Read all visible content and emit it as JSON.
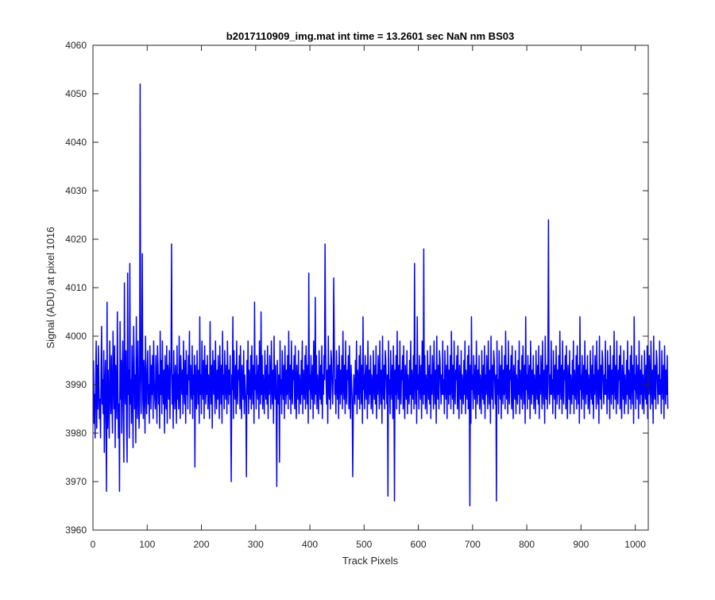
{
  "chart_data": {
    "type": "line",
    "title": "b2017110909_img.mat int time = 13.2601 sec  NaN nm BS03",
    "xlabel": "Track Pixels",
    "ylabel": "Signal (ADU) at pixel 1016",
    "xlim": [
      0,
      1024
    ],
    "ylim": [
      3960,
      4060
    ],
    "xticks": [
      0,
      100,
      200,
      300,
      400,
      500,
      600,
      700,
      800,
      900,
      1000
    ],
    "yticks": [
      3960,
      3970,
      3980,
      3990,
      4000,
      4010,
      4020,
      4030,
      4040,
      4050,
      4060
    ],
    "grid": false,
    "legend": "none",
    "series": [
      {
        "color": "#0000ff",
        "x_start": 1,
        "x_step": 1,
        "values": [
          3995,
          3982,
          3988,
          3979,
          3992,
          3999,
          3981,
          3994,
          3985,
          3998,
          3990,
          3983,
          3987,
          3979,
          3993,
          4002,
          3986,
          3991,
          3984,
          3997,
          3976,
          3989,
          3995,
          3982,
          3968,
          4007,
          3981,
          3993,
          3986,
          3979,
          3999,
          3990,
          3984,
          3996,
          3988,
          3980,
          4001,
          3992,
          3985,
          3998,
          3977,
          3994,
          3989,
          3983,
          4005,
          3991,
          3979,
          3986,
          3968,
          4003,
          3987,
          3995,
          3980,
          3992,
          3999,
          3984,
          3974,
          4011,
          3990,
          3986,
          3997,
          3981,
          3974,
          4013,
          3988,
          3993,
          3979,
          4015,
          3986,
          3991,
          3982,
          3998,
          3989,
          3977,
          4002,
          3995,
          3985,
          3992,
          3978,
          4004,
          3988,
          3983,
          3999,
          3990,
          3981,
          3986,
          4052,
          3994,
          3984,
          3997,
          4017,
          3987,
          3983,
          3995,
          3991,
          3980,
          4000,
          3989,
          3984,
          3993,
          3997,
          3986,
          3990,
          3982,
          3998,
          3992,
          3985,
          3994,
          3988,
          3996,
          3983,
          3999,
          3991,
          3987,
          3985,
          3996,
          3990,
          3982,
          3998,
          3994,
          3986,
          3992,
          3981,
          4001,
          3988,
          3995,
          3984,
          3999,
          3990,
          3986,
          3993,
          3980,
          3996,
          3989,
          3985,
          3998,
          3982,
          3994,
          3991,
          3987,
          3997,
          3983,
          3990,
          3995,
          4019,
          3986,
          3992,
          3981,
          3997,
          3989,
          3985,
          3994,
          3990,
          3982,
          3998,
          3987,
          3992,
          3985,
          4000,
          3989,
          3983,
          3996,
          3991,
          3988,
          3993,
          3984,
          3999,
          3990,
          3986,
          3995,
          3982,
          3997,
          3988,
          3992,
          3985,
          3996,
          3991,
          4001,
          3984,
          3994,
          3990,
          3987,
          3998,
          3983,
          3992,
          3988,
          3996,
          3973,
          3994,
          3989,
          3985,
          3997,
          3991,
          3986,
          3993,
          3982,
          4004,
          3988,
          3992,
          3984,
          3999,
          3990,
          3987,
          3995,
          3983,
          3998,
          3991,
          3986,
          3994,
          3988,
          3996,
          3985,
          3992,
          3989,
          3983,
          4003,
          3990,
          3986,
          3994,
          3981,
          3997,
          3991,
          3988,
          3995,
          3984,
          3999,
          3989,
          3985,
          3993,
          3987,
          3996,
          3990,
          3983,
          3998,
          3991,
          3986,
          3994,
          3982,
          4001,
          3988,
          3992,
          3985,
          3997,
          3990,
          3987,
          3994,
          3984,
          3999,
          3991,
          3986,
          3993,
          3988,
          3996,
          3985,
          3970,
          3992,
          3989,
          4004,
          3983,
          3997,
          3990,
          3987,
          3994,
          3984,
          3999,
          3989,
          3986,
          3993,
          3991,
          3996,
          3985,
          3998,
          3988,
          3983,
          3994,
          3990,
          3987,
          3997,
          3984,
          3992,
          3989,
          3986,
          3971,
          3995,
          3988,
          3999,
          3984,
          3993,
          3990,
          3987,
          3996,
          3985,
          3998,
          3991,
          3986,
          3994,
          3982,
          4007,
          3989,
          3992,
          3985,
          3996,
          3990,
          3987,
          3994,
          3983,
          3999,
          3991,
          3986,
          4005,
          3988,
          3996,
          3985,
          3992,
          3989,
          3984,
          3997,
          3990,
          3987,
          3994,
          3986,
          3998,
          3983,
          3992,
          3988,
          3996,
          3991,
          3985,
          3999,
          3990,
          3986,
          3993,
          3982,
          4000,
          3989,
          3987,
          3994,
          3985,
          3969,
          3995,
          3990,
          3986,
          3992,
          3974,
          3999,
          3988,
          3991,
          3984,
          3997,
          3990,
          3987,
          3994,
          3983,
          3998,
          3991,
          3986,
          3993,
          3988,
          3996,
          3985,
          4001,
          3990,
          3987,
          3994,
          3984,
          3999,
          3989,
          3986,
          3993,
          3991,
          3996,
          3985,
          3998,
          3988,
          3983,
          3994,
          3990,
          3987,
          3997,
          3984,
          3992,
          3989,
          3986,
          3995,
          3988,
          3999,
          3984,
          3993,
          3990,
          3987,
          3996,
          3985,
          3998,
          3991,
          3986,
          3994,
          3982,
          4013,
          3989,
          3992,
          3985,
          3996,
          3990,
          3987,
          3994,
          3983,
          3999,
          3991,
          3986,
          4008,
          3988,
          3996,
          3985,
          3992,
          3989,
          3984,
          3997,
          3990,
          3987,
          3994,
          3986,
          3998,
          3983,
          3992,
          3988,
          3996,
          3991,
          4019,
          3999,
          3990,
          3986,
          3993,
          3982,
          4000,
          3989,
          3987,
          3994,
          3985,
          3997,
          3995,
          3990,
          3986,
          3992,
          4012,
          3999,
          3988,
          3991,
          3984,
          3997,
          3990,
          3987,
          3994,
          3983,
          3998,
          3991,
          3986,
          3993,
          3988,
          3996,
          3985,
          4001,
          3990,
          3987,
          3994,
          3984,
          3999,
          3989,
          3986,
          3993,
          3991,
          3996,
          3985,
          3998,
          3988,
          3983,
          3994,
          3990,
          3987,
          3971,
          3984,
          3992,
          3989,
          3986,
          3995,
          3988,
          3999,
          3984,
          3993,
          3990,
          3987,
          3996,
          3985,
          3998,
          3991,
          3986,
          3994,
          3982,
          4004,
          3989,
          3992,
          3985,
          3996,
          3990,
          3987,
          3994,
          3983,
          3999,
          3991,
          3986,
          3993,
          3988,
          3996,
          3985,
          3992,
          3989,
          3984,
          3997,
          3990,
          3987,
          3994,
          3986,
          3998,
          3983,
          3992,
          3988,
          3996,
          3991,
          3985,
          3999,
          3990,
          3986,
          3993,
          3982,
          4000,
          3989,
          3987,
          3994,
          3985,
          3997,
          3995,
          3990,
          3986,
          3992,
          3967,
          3999,
          3988,
          3991,
          3984,
          3997,
          3990,
          3987,
          3994,
          3983,
          3998,
          3991,
          3966,
          3993,
          3988,
          3996,
          3985,
          4001,
          3990,
          3987,
          3994,
          3984,
          3999,
          3989,
          3986,
          3993,
          3991,
          3996,
          3985,
          3998,
          3988,
          3983,
          3994,
          3990,
          3987,
          3997,
          3984,
          3992,
          3989,
          3986,
          3995,
          3988,
          3999,
          3984,
          3993,
          3990,
          3987,
          3996,
          3985,
          4015,
          3991,
          3986,
          3994,
          3982,
          4004,
          3989,
          3992,
          3985,
          3996,
          3990,
          3987,
          3994,
          3983,
          3999,
          3991,
          3986,
          4018,
          3988,
          3996,
          3985,
          3992,
          3989,
          3984,
          3997,
          3990,
          3987,
          3994,
          3986,
          3998,
          3983,
          3992,
          3988,
          3996,
          3991,
          3985,
          3999,
          3990,
          3986,
          3993,
          3982,
          4000,
          3989,
          3987,
          3994,
          3985,
          3997,
          3995,
          3990,
          3986,
          3992,
          3988,
          3999,
          3988,
          3991,
          3984,
          3997,
          3990,
          3987,
          3994,
          3983,
          3998,
          3991,
          3986,
          3993,
          3988,
          3996,
          3985,
          4001,
          3990,
          3987,
          3994,
          3984,
          3999,
          3989,
          3986,
          3993,
          3991,
          3996,
          3985,
          3998,
          3988,
          3983,
          3994,
          3990,
          3987,
          3997,
          3984,
          3992,
          3989,
          3986,
          3995,
          3988,
          3999,
          3984,
          3993,
          3990,
          3987,
          3996,
          3985,
          3998,
          3991,
          3965,
          3994,
          3982,
          4004,
          3989,
          3992,
          3985,
          3996,
          3990,
          3987,
          3994,
          3983,
          3999,
          3991,
          3986,
          3993,
          3988,
          3996,
          3985,
          3992,
          3989,
          3984,
          3997,
          3990,
          3987,
          3994,
          3986,
          3998,
          3983,
          3992,
          3988,
          3996,
          3991,
          3985,
          3999,
          3990,
          3986,
          3993,
          3982,
          4000,
          3989,
          3987,
          3994,
          3985,
          3997,
          3995,
          3990,
          3986,
          3992,
          3966,
          3999,
          3988,
          3991,
          3984,
          3997,
          3990,
          3987,
          3994,
          3983,
          3998,
          3991,
          3986,
          3993,
          3988,
          3996,
          3985,
          4001,
          3990,
          3987,
          3994,
          3984,
          3999,
          3989,
          3986,
          3993,
          3991,
          3996,
          3985,
          3998,
          3988,
          3983,
          3994,
          3990,
          3987,
          3997,
          3984,
          3992,
          3989,
          3986,
          3995,
          3988,
          3999,
          3984,
          3993,
          3990,
          3987,
          3996,
          3985,
          3998,
          3991,
          3986,
          3994,
          3982,
          4004,
          3989,
          3992,
          3985,
          3996,
          3990,
          3987,
          3994,
          3983,
          3999,
          3991,
          3986,
          3993,
          3988,
          3996,
          3985,
          3992,
          3989,
          3984,
          3997,
          3990,
          3987,
          3994,
          3986,
          3998,
          3983,
          3992,
          3988,
          3996,
          3991,
          3985,
          3999,
          3990,
          3986,
          3993,
          3982,
          4000,
          3989,
          3987,
          3994,
          3985,
          3997,
          4024,
          3990,
          3986,
          3992,
          3988,
          3999,
          3988,
          3991,
          3984,
          3997,
          3990,
          3987,
          3994,
          3983,
          3998,
          3991,
          3986,
          3993,
          3988,
          3996,
          3985,
          4001,
          3990,
          3987,
          3994,
          3984,
          3999,
          3989,
          3986,
          3993,
          3991,
          3996,
          3985,
          3998,
          3988,
          3983,
          3994,
          3990,
          3987,
          3997,
          3984,
          3992,
          3989,
          3986,
          3995,
          3988,
          3999,
          3984,
          3993,
          3990,
          3987,
          3996,
          3985,
          3998,
          3991,
          3986,
          3994,
          3982,
          4004,
          3989,
          3992,
          3985,
          3996,
          3990,
          3987,
          3994,
          3983,
          3999,
          3991,
          3986,
          3993,
          3988,
          3996,
          3985,
          3992,
          3989,
          3984,
          3997,
          3990,
          3987,
          3994,
          3986,
          3998,
          3983,
          3992,
          3988,
          3996,
          3991,
          3985,
          3999,
          3990,
          3986,
          3993,
          3982,
          4000,
          3989,
          3987,
          3994,
          3985,
          3997,
          3995,
          3990,
          3986,
          3992,
          3988,
          3999,
          3988,
          3991,
          3984,
          3997,
          3990,
          3987,
          3994,
          3983,
          3998,
          3991,
          3986,
          3993,
          3988,
          3996,
          3985,
          4001,
          3990,
          3987,
          3994,
          3984,
          3999,
          3989,
          3986,
          3993,
          3991,
          3996,
          3985,
          3998,
          3988,
          3983,
          3994,
          3990,
          3987,
          3997,
          3984,
          3992,
          3989,
          3986,
          3995,
          3988,
          3999,
          3984,
          3993,
          3990,
          3987,
          3996,
          3985,
          3998,
          3991,
          3986,
          3994,
          3982,
          4004,
          3989,
          3992,
          3985,
          3996,
          3990,
          3987,
          3994,
          3983,
          3999,
          3991,
          3986,
          3993,
          3988,
          3996,
          3985,
          3992,
          3989,
          3984,
          3997,
          3990,
          3987,
          3994,
          3986,
          3998,
          3983,
          3992,
          3988,
          3996,
          3991,
          3985,
          3999,
          3990,
          3986,
          3993,
          3982,
          4000,
          3989,
          3987,
          3994,
          3985,
          3997,
          3995,
          3990,
          3986,
          3992,
          3988,
          3999,
          3988,
          3991,
          3984,
          3997,
          3990,
          3987,
          3994,
          3983,
          3998,
          3991,
          3986,
          3993,
          3988,
          3996,
          3985
        ]
      }
    ]
  }
}
